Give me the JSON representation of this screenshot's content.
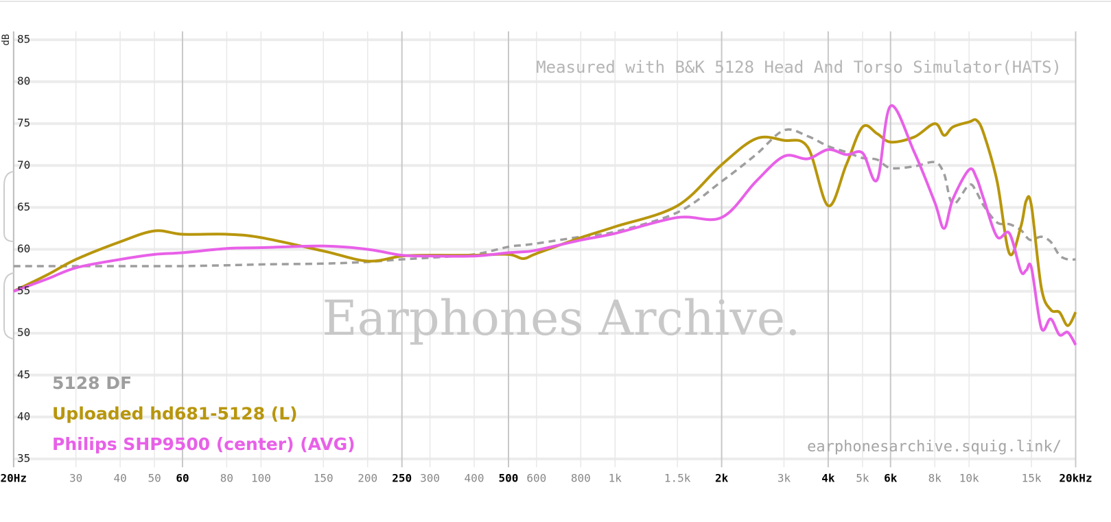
{
  "chart_data": {
    "type": "line",
    "y_label": "dB",
    "annotation": "Measured with B&K 5128 Head And Torso Simulator(HATS)",
    "watermark": "Earphones Archive.",
    "url": "earphonesarchive.squig.link/",
    "x_scale": "log",
    "grid": true,
    "xlim": [
      20,
      20000
    ],
    "ylim": [
      34,
      86
    ],
    "xticks": [
      {
        "value": 20,
        "label": "20Hz"
      },
      30,
      40,
      50,
      60,
      80,
      100,
      150,
      200,
      250,
      300,
      400,
      500,
      600,
      800,
      {
        "value": 1000,
        "label": "1k"
      },
      {
        "value": 1500,
        "label": "1.5k"
      },
      {
        "value": 2000,
        "label": "2k"
      },
      {
        "value": 3000,
        "label": "3k"
      },
      {
        "value": 4000,
        "label": "4k"
      },
      {
        "value": 5000,
        "label": "5k"
      },
      {
        "value": 6000,
        "label": "6k"
      },
      {
        "value": 8000,
        "label": "8k"
      },
      {
        "value": 10000,
        "label": "10k"
      },
      {
        "value": 15000,
        "label": "15k"
      },
      {
        "value": 20000,
        "label": "20kHz"
      }
    ],
    "yticks": [
      35,
      40,
      45,
      50,
      55,
      60,
      65,
      70,
      75,
      80,
      85
    ],
    "x": [
      20,
      25,
      30,
      40,
      50,
      60,
      80,
      100,
      150,
      200,
      250,
      300,
      400,
      500,
      550,
      600,
      800,
      1000,
      1500,
      2000,
      2500,
      3000,
      3500,
      4000,
      4500,
      5000,
      5500,
      6000,
      7000,
      8000,
      8500,
      9000,
      10000,
      10500,
      11000,
      12000,
      13000,
      14000,
      14500,
      15000,
      16000,
      17000,
      18000,
      19000,
      20000
    ],
    "series": [
      {
        "name": "5128 DF",
        "color": "#9e9e9e",
        "dashed": true,
        "values": [
          58,
          58,
          58,
          58,
          58,
          58,
          58.1,
          58.2,
          58.3,
          58.5,
          58.8,
          59,
          59.4,
          60.3,
          60.5,
          60.7,
          61.5,
          62.1,
          64.4,
          68.1,
          71.3,
          74.2,
          73.5,
          72.3,
          71.6,
          70.9,
          70.7,
          69.7,
          69.9,
          70.4,
          69,
          65.4,
          67.7,
          66.8,
          65.2,
          63.2,
          63,
          62.3,
          61.5,
          61.1,
          61.5,
          60.9,
          59.3,
          58.8,
          58.8
        ]
      },
      {
        "name": "Uploaded hd681-5128 (L)",
        "color": "#b8960c",
        "dashed": false,
        "values": [
          55,
          57,
          58.8,
          60.9,
          62.2,
          61.8,
          61.8,
          61.4,
          59.8,
          58.6,
          59.2,
          59.3,
          59.3,
          59.4,
          58.9,
          59.5,
          61.4,
          62.7,
          65.2,
          70.1,
          73.2,
          73,
          72.2,
          65.2,
          70.1,
          74.6,
          73.8,
          72.8,
          73.4,
          75,
          73.6,
          74.6,
          75.2,
          75.4,
          73.8,
          68.1,
          59.5,
          62.7,
          65.8,
          65.2,
          55.4,
          52.8,
          52.5,
          50.9,
          52.5
        ]
      },
      {
        "name": "Philips SHP9500 (center) (AVG)",
        "color": "#e860e8",
        "dashed": false,
        "values": [
          55,
          56.5,
          57.8,
          58.8,
          59.4,
          59.6,
          60.1,
          60.2,
          60.4,
          60,
          59.3,
          59.2,
          59.2,
          59.6,
          59.7,
          59.9,
          61.1,
          61.9,
          63.8,
          63.8,
          68.1,
          71.1,
          70.8,
          71.9,
          71.3,
          71.5,
          68.3,
          77.1,
          71.6,
          65.6,
          62.5,
          66,
          69.5,
          68.5,
          66,
          61.5,
          61.9,
          57.4,
          57.5,
          57.8,
          50.6,
          51.7,
          49.8,
          50.1,
          48.6
        ]
      }
    ]
  }
}
